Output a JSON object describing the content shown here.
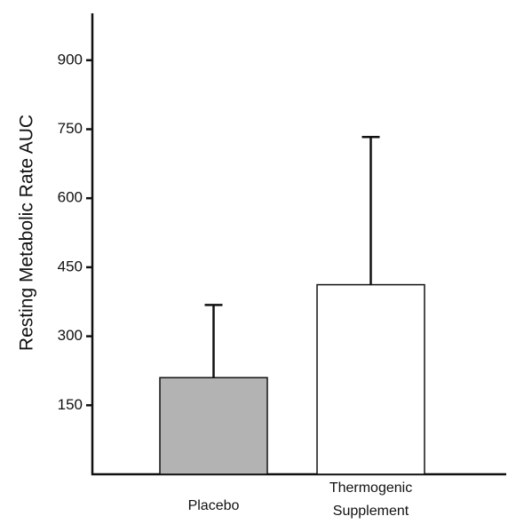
{
  "chart_data": {
    "type": "bar",
    "categories": [
      {
        "lines": [
          "Placebo"
        ]
      },
      {
        "lines": [
          "Thermogenic",
          "Supplement"
        ]
      }
    ],
    "values": [
      210,
      412
    ],
    "error_upper": [
      368,
      733
    ],
    "bar_colors": [
      "#b3b3b3",
      "#ffffff"
    ],
    "ylabel": "Resting Metabolic Rate AUC",
    "yticks": [
      150,
      300,
      450,
      600,
      750,
      900
    ],
    "ylim": [
      0,
      1000
    ],
    "grid": false,
    "legend": "none"
  }
}
